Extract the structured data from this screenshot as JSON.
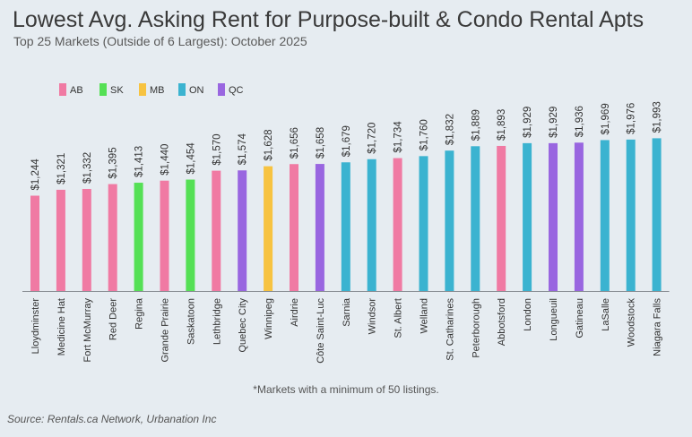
{
  "header": {
    "title": "Lowest Avg. Asking Rent for Purpose-built & Condo Rental Apts",
    "subtitle": "Top 25 Markets (Outside of 6 Largest): October 2025"
  },
  "footer": {
    "footnote": "*Markets with a minimum of 50 listings.",
    "source": "Source: Rentals.ca Network, Urbanation Inc"
  },
  "chart_data": {
    "type": "bar",
    "title": "Lowest Avg. Asking Rent for Purpose-built & Condo Rental Apts",
    "xlabel": "",
    "ylabel": "",
    "legend_position": "top-left",
    "legend": [
      {
        "key": "AB",
        "color": "#f07aa3"
      },
      {
        "key": "SK",
        "color": "#55e055"
      },
      {
        "key": "MB",
        "color": "#f7c341"
      },
      {
        "key": "ON",
        "color": "#3bb3d0"
      },
      {
        "key": "QC",
        "color": "#9966e0"
      }
    ],
    "ylim": [
      0,
      2000
    ],
    "categories": [
      "Lloydminster",
      "Medicine Hat",
      "Fort McMurray",
      "Red Deer",
      "Regina",
      "Grande Prairie",
      "Saskatoon",
      "Lethbridge",
      "Quebec City",
      "Winnipeg",
      "Airdrie",
      "Côte Saint-Luc",
      "Sarnia",
      "Windsor",
      "St. Albert",
      "Welland",
      "St. Catharines",
      "Peterborough",
      "Abbotsford",
      "London",
      "Longueuil",
      "Gatineau",
      "LaSalle",
      "Woodstock",
      "Niagara Falls"
    ],
    "values": [
      1244,
      1321,
      1332,
      1395,
      1413,
      1440,
      1454,
      1570,
      1574,
      1628,
      1656,
      1658,
      1679,
      1720,
      1734,
      1760,
      1832,
      1889,
      1893,
      1929,
      1929,
      1936,
      1969,
      1976,
      1993
    ],
    "labels": [
      "$1,244",
      "$1,321",
      "$1,332",
      "$1,395",
      "$1,413",
      "$1,440",
      "$1,454",
      "$1,570",
      "$1,574",
      "$1,628",
      "$1,656",
      "$1,658",
      "$1,679",
      "$1,720",
      "$1,734",
      "$1,760",
      "$1,832",
      "$1,889",
      "$1,893",
      "$1,929",
      "$1,929",
      "$1,936",
      "$1,969",
      "$1,976",
      "$1,993"
    ],
    "groups": [
      "AB",
      "AB",
      "AB",
      "AB",
      "SK",
      "AB",
      "SK",
      "AB",
      "QC",
      "MB",
      "AB",
      "QC",
      "ON",
      "ON",
      "AB",
      "ON",
      "ON",
      "ON",
      "AB",
      "ON",
      "QC",
      "QC",
      "ON",
      "ON",
      "ON"
    ]
  }
}
